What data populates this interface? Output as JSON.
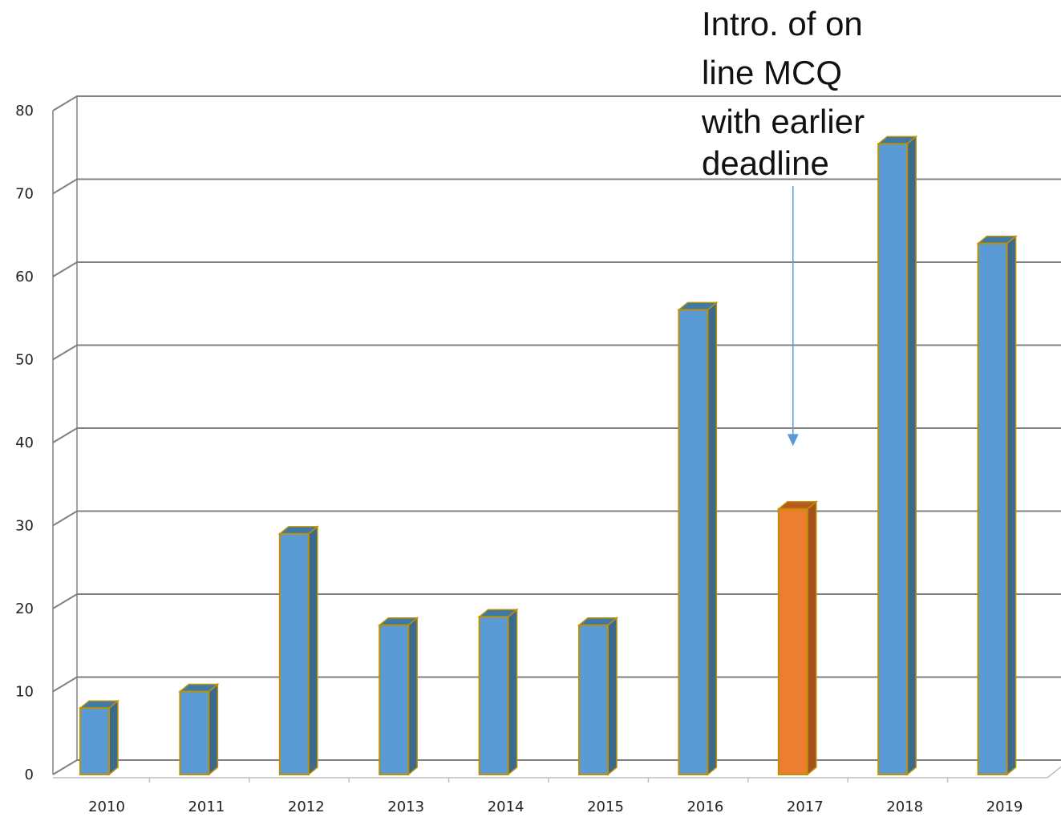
{
  "chart_data": {
    "type": "bar",
    "title": "",
    "xlabel": "",
    "ylabel": "",
    "categories": [
      "2010",
      "2011",
      "2012",
      "2013",
      "2014",
      "2015",
      "2016",
      "2017",
      "2018",
      "2019"
    ],
    "values": [
      8,
      10,
      29,
      18,
      19,
      18,
      56,
      32,
      76,
      64
    ],
    "highlight_category": "2017",
    "ylim": [
      0,
      80
    ],
    "yticks": [
      0,
      10,
      20,
      30,
      40,
      50,
      60,
      70,
      80
    ],
    "ytick_labels": [
      "0",
      "10",
      "20",
      "30",
      "40",
      "50",
      "60",
      "70",
      "80"
    ],
    "grid": true,
    "style": "3d-column",
    "colors": {
      "bar_front": "#5b9bd5",
      "bar_side": "#3c6a8c",
      "bar_top": "#3f79a8",
      "highlight_front": "#ed7d31",
      "highlight_side": "#a4511e",
      "highlight_top": "#b85a20",
      "bar_outline": "#bf9000",
      "gridline": "#808080",
      "arrow": "#5b9bd5"
    },
    "annotation": {
      "lines": [
        "Intro. of on",
        "line MCQ",
        "with earlier",
        "deadline"
      ],
      "target_category": "2017",
      "arrow_to_value": 39
    }
  }
}
